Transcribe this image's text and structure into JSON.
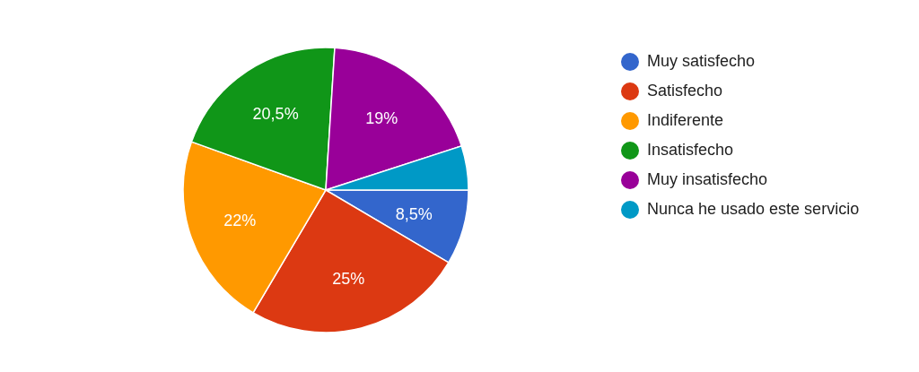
{
  "chart_data": {
    "type": "pie",
    "categories": [
      "Muy satisfecho",
      "Satisfecho",
      "Indiferente",
      "Insatisfecho",
      "Muy insatisfecho",
      "Nunca he usado este servicio"
    ],
    "values": [
      8.5,
      25,
      22,
      20.5,
      19,
      5
    ],
    "colors": [
      "#3366cc",
      "#dc3912",
      "#ff9900",
      "#109618",
      "#990099",
      "#0099c6"
    ],
    "value_labels": [
      "8,5%",
      "25%",
      "22%",
      "20,5%",
      "19%",
      null
    ],
    "legend": "right"
  }
}
